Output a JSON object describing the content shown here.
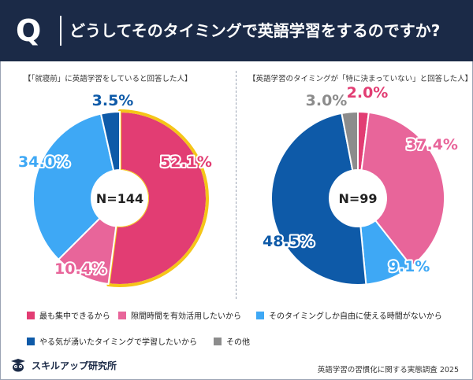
{
  "header": {
    "q_mark": "Q",
    "title": "どうしてそのタイミングで英語学習をするのですか?"
  },
  "legend": [
    {
      "label": "最も集中できるから",
      "color": "#e23d73"
    },
    {
      "label": "隙間時間を有効活用したいから",
      "color": "#e8659a"
    },
    {
      "label": "そのタイミングしか自由に使える時間がないから",
      "color": "#3ea8f5"
    },
    {
      "label": "やる気が湧いたタイミングで学習したいから",
      "color": "#0e5aa8"
    },
    {
      "label": "その他",
      "color": "#8c8c8c"
    }
  ],
  "highlight_color": "#f5c518",
  "footer": {
    "brand": "スキルアップ研究所",
    "source": "英語学習の習慣化に関する実態調査 2025"
  },
  "chart_data": [
    {
      "type": "pie",
      "variant": "donut",
      "title": "【「就寝前」に英語学習をしていると回答した人】",
      "center_label": "N=144",
      "categories": [
        "最も集中できるから",
        "隙間時間を有効活用したいから",
        "そのタイミングしか自由に使える時間がないから",
        "やる気が湧いたタイミングで学習したいから"
      ],
      "values": [
        52.1,
        10.4,
        34.0,
        3.5
      ],
      "labels": [
        "52.1%",
        "10.4%",
        "34.0%",
        "3.5%"
      ],
      "highlighted": "最も集中できるから"
    },
    {
      "type": "pie",
      "variant": "donut",
      "title": "【英語学習のタイミングが「特に決まっていない」と回答した人】",
      "center_label": "N=99",
      "categories": [
        "最も集中できるから",
        "隙間時間を有効活用したいから",
        "そのタイミングしか自由に使える時間がないから",
        "やる気が湧いたタイミングで学習したいから",
        "その他"
      ],
      "values": [
        2.0,
        37.4,
        9.1,
        48.5,
        3.0
      ],
      "labels": [
        "2.0%",
        "37.4%",
        "9.1%",
        "48.5%",
        "3.0%"
      ]
    }
  ]
}
